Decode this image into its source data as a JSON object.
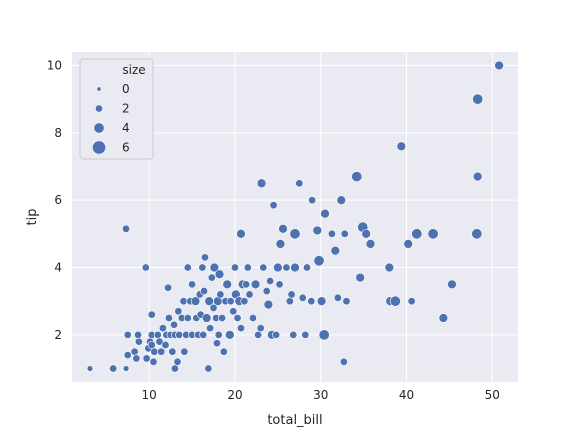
{
  "chart_data": {
    "type": "scatter",
    "xlabel": "total_bill",
    "ylabel": "tip",
    "xlim": [
      1,
      53
    ],
    "ylim": [
      0.6,
      10.4
    ],
    "x_ticks": [
      10,
      20,
      30,
      40,
      50
    ],
    "y_ticks": [
      2,
      4,
      6,
      8,
      10
    ],
    "grid": true,
    "legend": {
      "title": "size",
      "placement": "top-left",
      "entries": [
        {
          "label": "0",
          "size": 0
        },
        {
          "label": "2",
          "size": 2
        },
        {
          "label": "4",
          "size": 4
        },
        {
          "label": "6",
          "size": 6
        }
      ]
    },
    "point_color": "#4c72b0",
    "points": [
      [
        3.1,
        1.0,
        1
      ],
      [
        5.8,
        1.0,
        2
      ],
      [
        7.3,
        1.0,
        1
      ],
      [
        7.3,
        5.15,
        2
      ],
      [
        7.5,
        1.4,
        2
      ],
      [
        8.3,
        1.5,
        2
      ],
      [
        8.5,
        1.3,
        2
      ],
      [
        8.8,
        1.8,
        2
      ],
      [
        7.5,
        2.0,
        2
      ],
      [
        8.7,
        2.0,
        2
      ],
      [
        9.6,
        4.0,
        2
      ],
      [
        9.7,
        1.3,
        2
      ],
      [
        9.9,
        1.6,
        2
      ],
      [
        10.1,
        1.8,
        2
      ],
      [
        10.3,
        1.7,
        2
      ],
      [
        10.3,
        2.0,
        2
      ],
      [
        10.5,
        1.2,
        2
      ],
      [
        10.6,
        1.5,
        2
      ],
      [
        10.3,
        2.6,
        2
      ],
      [
        11.0,
        2.0,
        2
      ],
      [
        11.2,
        1.8,
        2
      ],
      [
        11.4,
        1.5,
        2
      ],
      [
        11.6,
        2.2,
        2
      ],
      [
        11.9,
        1.7,
        2
      ],
      [
        12.0,
        2.0,
        2
      ],
      [
        12.3,
        2.5,
        2
      ],
      [
        12.5,
        2.0,
        2
      ],
      [
        12.2,
        3.4,
        2
      ],
      [
        12.7,
        1.5,
        2
      ],
      [
        12.9,
        2.3,
        2
      ],
      [
        13.0,
        1.0,
        2
      ],
      [
        13.0,
        2.0,
        2
      ],
      [
        13.3,
        1.2,
        2
      ],
      [
        13.4,
        2.7,
        2
      ],
      [
        13.5,
        2.0,
        2
      ],
      [
        13.8,
        2.5,
        2
      ],
      [
        14.0,
        3.0,
        2
      ],
      [
        14.1,
        1.5,
        2
      ],
      [
        14.3,
        2.0,
        2
      ],
      [
        14.5,
        2.5,
        2
      ],
      [
        14.5,
        4.0,
        2
      ],
      [
        14.8,
        3.0,
        2
      ],
      [
        15.0,
        2.0,
        2
      ],
      [
        15.0,
        3.5,
        2
      ],
      [
        15.4,
        3.0,
        3
      ],
      [
        15.5,
        2.5,
        2
      ],
      [
        15.7,
        2.0,
        2
      ],
      [
        15.9,
        3.2,
        2
      ],
      [
        16.0,
        2.6,
        2
      ],
      [
        16.2,
        4.0,
        2
      ],
      [
        16.3,
        2.0,
        2
      ],
      [
        16.4,
        3.3,
        2
      ],
      [
        16.5,
        4.3,
        2
      ],
      [
        16.7,
        2.5,
        3
      ],
      [
        16.9,
        1.0,
        2
      ],
      [
        17.0,
        3.0,
        3
      ],
      [
        17.1,
        2.2,
        2
      ],
      [
        17.3,
        3.7,
        2
      ],
      [
        17.5,
        2.8,
        2
      ],
      [
        17.6,
        4.0,
        3
      ],
      [
        17.8,
        2.5,
        2
      ],
      [
        17.9,
        1.75,
        2
      ],
      [
        18.0,
        3.0,
        3
      ],
      [
        18.1,
        2.0,
        2
      ],
      [
        18.2,
        3.8,
        3
      ],
      [
        18.3,
        3.2,
        2
      ],
      [
        18.5,
        2.5,
        2
      ],
      [
        18.7,
        1.5,
        2
      ],
      [
        18.9,
        3.0,
        2
      ],
      [
        19.1,
        3.5,
        3
      ],
      [
        19.4,
        2.0,
        3
      ],
      [
        19.5,
        3.0,
        2
      ],
      [
        19.8,
        2.7,
        2
      ],
      [
        20.0,
        4.0,
        2
      ],
      [
        20.1,
        3.2,
        3
      ],
      [
        20.3,
        2.5,
        2
      ],
      [
        20.5,
        3.0,
        3
      ],
      [
        20.7,
        2.2,
        2
      ],
      [
        20.7,
        5.0,
        3
      ],
      [
        20.9,
        3.5,
        3
      ],
      [
        21.1,
        3.0,
        2
      ],
      [
        21.3,
        3.5,
        2
      ],
      [
        21.5,
        4.0,
        2
      ],
      [
        21.7,
        3.2,
        2
      ],
      [
        22.1,
        2.5,
        2
      ],
      [
        22.4,
        3.5,
        3
      ],
      [
        22.7,
        2.0,
        2
      ],
      [
        23.0,
        2.2,
        2
      ],
      [
        23.1,
        6.5,
        3
      ],
      [
        23.3,
        4.0,
        2
      ],
      [
        23.7,
        3.3,
        2
      ],
      [
        23.9,
        2.9,
        3
      ],
      [
        24.1,
        3.6,
        2
      ],
      [
        24.3,
        2.0,
        3
      ],
      [
        24.5,
        5.85,
        2
      ],
      [
        24.8,
        2.0,
        2
      ],
      [
        25.0,
        4.0,
        3
      ],
      [
        25.2,
        3.5,
        2
      ],
      [
        25.3,
        4.7,
        3
      ],
      [
        25.6,
        5.15,
        3
      ],
      [
        26.0,
        4.0,
        2
      ],
      [
        26.4,
        3.0,
        2
      ],
      [
        26.6,
        3.2,
        2
      ],
      [
        26.8,
        2.0,
        2
      ],
      [
        27.0,
        4.0,
        3
      ],
      [
        27.0,
        5.0,
        4
      ],
      [
        27.5,
        6.5,
        2
      ],
      [
        27.9,
        3.1,
        2
      ],
      [
        28.2,
        2.0,
        2
      ],
      [
        28.4,
        4.0,
        2
      ],
      [
        28.9,
        3.0,
        2
      ],
      [
        29.0,
        6.0,
        2
      ],
      [
        29.6,
        5.1,
        3
      ],
      [
        29.8,
        4.2,
        4
      ],
      [
        30.1,
        3.0,
        3
      ],
      [
        30.4,
        2.0,
        4
      ],
      [
        30.5,
        5.6,
        3
      ],
      [
        31.3,
        5.0,
        2
      ],
      [
        31.7,
        4.5,
        3
      ],
      [
        32.0,
        3.1,
        2
      ],
      [
        32.4,
        6.0,
        3
      ],
      [
        32.7,
        1.2,
        2
      ],
      [
        32.8,
        5.0,
        2
      ],
      [
        33.0,
        3.0,
        2
      ],
      [
        34.2,
        6.7,
        4
      ],
      [
        34.6,
        3.7,
        3
      ],
      [
        34.9,
        5.2,
        4
      ],
      [
        35.3,
        5.0,
        3
      ],
      [
        35.8,
        4.7,
        3
      ],
      [
        38.0,
        4.0,
        3
      ],
      [
        38.1,
        3.0,
        3
      ],
      [
        38.7,
        3.0,
        4
      ],
      [
        39.4,
        7.6,
        3
      ],
      [
        40.2,
        4.7,
        3
      ],
      [
        40.6,
        3.0,
        2
      ],
      [
        41.2,
        5.0,
        4
      ],
      [
        43.1,
        5.0,
        4
      ],
      [
        44.3,
        2.5,
        3
      ],
      [
        45.3,
        3.5,
        3
      ],
      [
        48.2,
        5.0,
        4
      ],
      [
        48.3,
        9.0,
        4
      ],
      [
        48.3,
        6.7,
        3
      ],
      [
        50.8,
        10.0,
        3
      ]
    ]
  }
}
